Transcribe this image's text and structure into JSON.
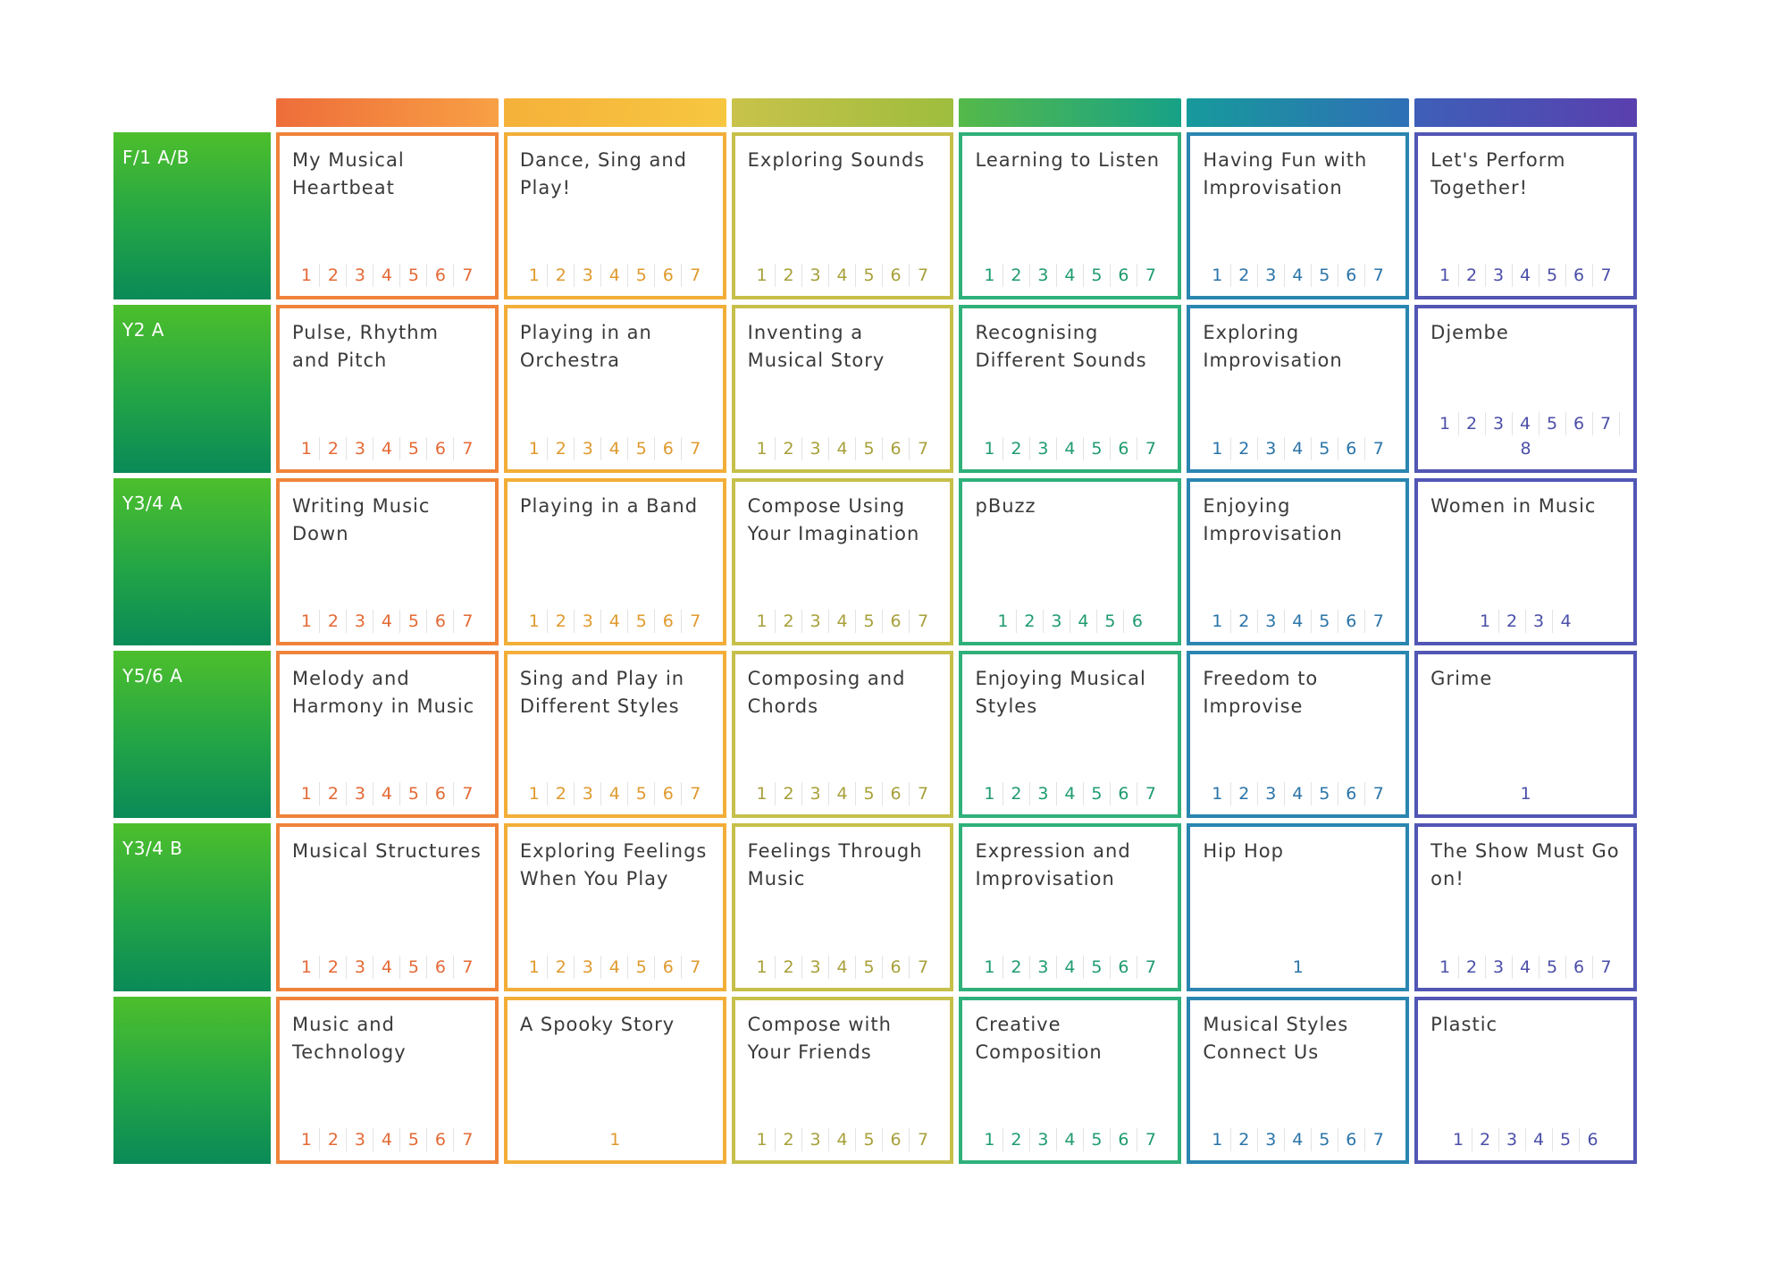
{
  "columns": [
    {
      "color": "#f0833a",
      "bar": "linear-gradient(90deg,#ee6d3a,#f8a045)",
      "num": "#e46a36"
    },
    {
      "color": "#f2ae38",
      "bar": "linear-gradient(90deg,#f5b13a,#f7c740)",
      "num": "#e09a2e"
    },
    {
      "color": "#c6c04a",
      "bar": "linear-gradient(90deg,#c8c24a,#9ebd3e)",
      "num": "#a7a03a"
    },
    {
      "color": "#2fb07a",
      "bar": "linear-gradient(90deg,#55b94a,#17a286)",
      "num": "#1f9b6e"
    },
    {
      "color": "#2a86b0",
      "bar": "linear-gradient(90deg,#179a9c,#2f6fb6)",
      "num": "#2a74a8"
    },
    {
      "color": "#5256b4",
      "bar": "linear-gradient(90deg,#3e5fb8,#5a3fae)",
      "num": "#4b4fa8"
    }
  ],
  "rows": [
    {
      "label": "F/1 A/B",
      "cells": [
        {
          "title": "My Musical Heartbeat",
          "steps": [
            "1",
            "2",
            "3",
            "4",
            "5",
            "6",
            "7"
          ]
        },
        {
          "title": "Dance, Sing and Play!",
          "steps": [
            "1",
            "2",
            "3",
            "4",
            "5",
            "6",
            "7"
          ]
        },
        {
          "title": "Exploring Sounds",
          "steps": [
            "1",
            "2",
            "3",
            "4",
            "5",
            "6",
            "7"
          ]
        },
        {
          "title": "Learning to Listen",
          "steps": [
            "1",
            "2",
            "3",
            "4",
            "5",
            "6",
            "7"
          ]
        },
        {
          "title": "Having Fun with Improvisation",
          "steps": [
            "1",
            "2",
            "3",
            "4",
            "5",
            "6",
            "7"
          ]
        },
        {
          "title": "Let's Perform Together!",
          "steps": [
            "1",
            "2",
            "3",
            "4",
            "5",
            "6",
            "7"
          ]
        }
      ]
    },
    {
      "label": "Y2 A",
      "cells": [
        {
          "title": "Pulse, Rhythm and Pitch",
          "steps": [
            "1",
            "2",
            "3",
            "4",
            "5",
            "6",
            "7"
          ]
        },
        {
          "title": "Playing in an Orchestra",
          "steps": [
            "1",
            "2",
            "3",
            "4",
            "5",
            "6",
            "7"
          ]
        },
        {
          "title": "Inventing a Musical Story",
          "steps": [
            "1",
            "2",
            "3",
            "4",
            "5",
            "6",
            "7"
          ]
        },
        {
          "title": "Recognising Different Sounds",
          "steps": [
            "1",
            "2",
            "3",
            "4",
            "5",
            "6",
            "7"
          ]
        },
        {
          "title": "Exploring Improvisation",
          "steps": [
            "1",
            "2",
            "3",
            "4",
            "5",
            "6",
            "7"
          ]
        },
        {
          "title": "Djembe",
          "steps": [
            "1",
            "2",
            "3",
            "4",
            "5",
            "6",
            "7",
            "8"
          ]
        }
      ]
    },
    {
      "label": "Y3/4 A",
      "cells": [
        {
          "title": "Writing Music Down",
          "steps": [
            "1",
            "2",
            "3",
            "4",
            "5",
            "6",
            "7"
          ]
        },
        {
          "title": "Playing in a Band",
          "steps": [
            "1",
            "2",
            "3",
            "4",
            "5",
            "6",
            "7"
          ]
        },
        {
          "title": "Compose Using Your Imagination",
          "steps": [
            "1",
            "2",
            "3",
            "4",
            "5",
            "6",
            "7"
          ]
        },
        {
          "title": "pBuzz",
          "steps": [
            "1",
            "2",
            "3",
            "4",
            "5",
            "6"
          ]
        },
        {
          "title": "Enjoying Improvisation",
          "steps": [
            "1",
            "2",
            "3",
            "4",
            "5",
            "6",
            "7"
          ]
        },
        {
          "title": "Women in Music",
          "steps": [
            "1",
            "2",
            "3",
            "4"
          ]
        }
      ]
    },
    {
      "label": "Y5/6 A",
      "cells": [
        {
          "title": "Melody and Harmony in Music",
          "steps": [
            "1",
            "2",
            "3",
            "4",
            "5",
            "6",
            "7"
          ]
        },
        {
          "title": "Sing and Play in Different Styles",
          "steps": [
            "1",
            "2",
            "3",
            "4",
            "5",
            "6",
            "7"
          ]
        },
        {
          "title": "Composing and Chords",
          "steps": [
            "1",
            "2",
            "3",
            "4",
            "5",
            "6",
            "7"
          ]
        },
        {
          "title": "Enjoying Musical Styles",
          "steps": [
            "1",
            "2",
            "3",
            "4",
            "5",
            "6",
            "7"
          ]
        },
        {
          "title": "Freedom to Improvise",
          "steps": [
            "1",
            "2",
            "3",
            "4",
            "5",
            "6",
            "7"
          ]
        },
        {
          "title": "Grime",
          "steps": [
            "1"
          ]
        }
      ]
    },
    {
      "label": "Y3/4 B",
      "cells": [
        {
          "title": "Musical Structures",
          "steps": [
            "1",
            "2",
            "3",
            "4",
            "5",
            "6",
            "7"
          ]
        },
        {
          "title": "Exploring Feelings When You Play",
          "steps": [
            "1",
            "2",
            "3",
            "4",
            "5",
            "6",
            "7"
          ]
        },
        {
          "title": "Feelings Through Music",
          "steps": [
            "1",
            "2",
            "3",
            "4",
            "5",
            "6",
            "7"
          ]
        },
        {
          "title": "Expression and Improvisation",
          "steps": [
            "1",
            "2",
            "3",
            "4",
            "5",
            "6",
            "7"
          ]
        },
        {
          "title": "Hip Hop",
          "steps": [
            "1"
          ]
        },
        {
          "title": "The Show Must Go on!",
          "steps": [
            "1",
            "2",
            "3",
            "4",
            "5",
            "6",
            "7"
          ]
        }
      ]
    },
    {
      "label": "",
      "cells": [
        {
          "title": "Music and Technology",
          "steps": [
            "1",
            "2",
            "3",
            "4",
            "5",
            "6",
            "7"
          ]
        },
        {
          "title": "A Spooky Story",
          "steps": [
            "1"
          ]
        },
        {
          "title": "Compose with Your Friends",
          "steps": [
            "1",
            "2",
            "3",
            "4",
            "5",
            "6",
            "7"
          ]
        },
        {
          "title": "Creative Composition",
          "steps": [
            "1",
            "2",
            "3",
            "4",
            "5",
            "6",
            "7"
          ]
        },
        {
          "title": "Musical Styles Connect Us",
          "steps": [
            "1",
            "2",
            "3",
            "4",
            "5",
            "6",
            "7"
          ]
        },
        {
          "title": "Plastic",
          "steps": [
            "1",
            "2",
            "3",
            "4",
            "5",
            "6"
          ]
        }
      ]
    }
  ]
}
